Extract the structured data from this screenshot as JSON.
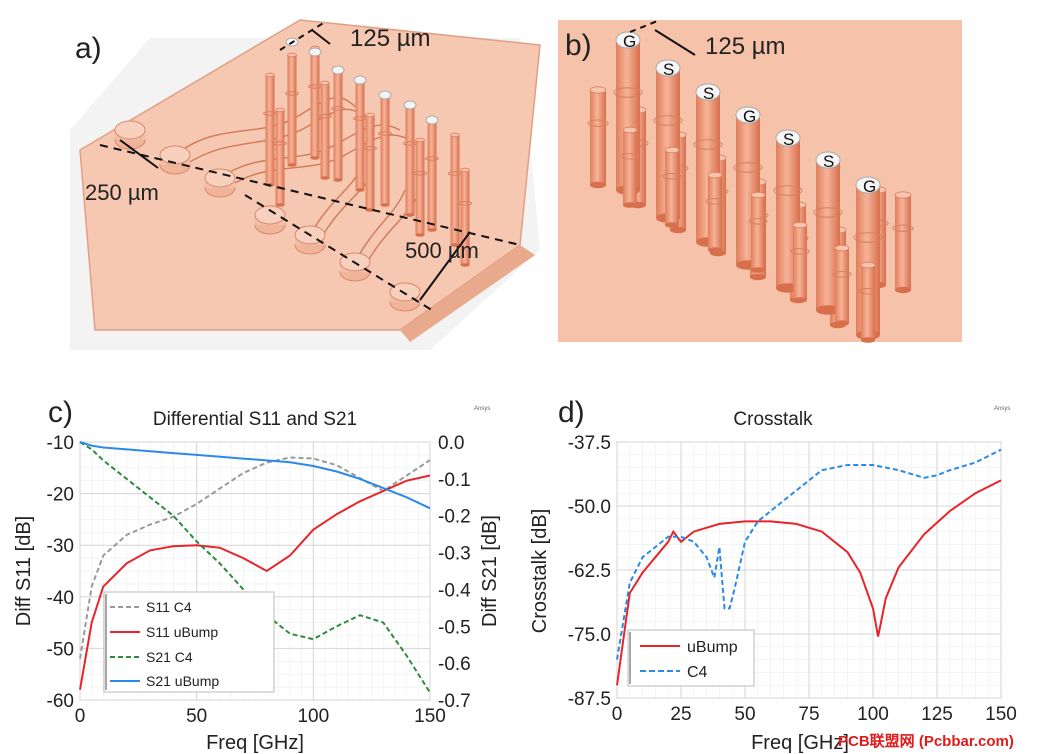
{
  "panels": {
    "a": {
      "label": "a)",
      "dims": [
        "125 µm",
        "250 µm",
        "500 µm"
      ]
    },
    "b": {
      "label": "b)",
      "dims": [
        "125 µm"
      ],
      "pad_labels": [
        "G",
        "S",
        "S",
        "G",
        "S",
        "S",
        "G"
      ]
    }
  },
  "colors": {
    "s11_c4": "#9a9a9a",
    "s11_ubump": "#e8242a",
    "s21_c4": "#2e8b3e",
    "s21_ubump": "#2a8ae8",
    "c4_crosstalk": "#2a8ae8",
    "copper": "#ec9b7c",
    "board": "#f6c7b1"
  },
  "watermark": "PCB联盟网 (Pcbbar.com)",
  "chart_data": [
    {
      "panel_label": "c)",
      "type": "line",
      "title": "Differential S11 and S21",
      "logo": "Ansys",
      "xlabel": "Freq [GHz]",
      "ylabel": "Diff S11 [dB]",
      "y2label": "Diff S21 [dB]",
      "xlim": [
        0,
        150
      ],
      "ylim": [
        -60,
        -10
      ],
      "y2lim": [
        -0.7,
        0.0
      ],
      "xticks": [
        "0",
        "50",
        "100",
        "150"
      ],
      "yticks": [
        "-10",
        "-20",
        "-30",
        "-40",
        "-50",
        "-60"
      ],
      "y2ticks": [
        "0.0",
        "-0.1",
        "-0.2",
        "-0.3",
        "-0.4",
        "-0.5",
        "-0.6",
        "-0.7"
      ],
      "grid": true,
      "legend_position": "bottom-left",
      "x": [
        0,
        5,
        10,
        20,
        30,
        40,
        50,
        60,
        70,
        80,
        90,
        100,
        110,
        120,
        130,
        140,
        150
      ],
      "series": [
        {
          "name": "S11 C4",
          "axis": "left",
          "style": "dashed",
          "values": [
            -52,
            -38,
            -32,
            -28,
            -26,
            -24.5,
            -22,
            -19,
            -16,
            -14,
            -13,
            -13.2,
            -14.5,
            -17,
            -19.5,
            -16.5,
            -13.5
          ]
        },
        {
          "name": "S11 uBump",
          "axis": "left",
          "style": "solid",
          "values": [
            -58,
            -45,
            -38,
            -33.5,
            -31,
            -30.2,
            -30,
            -30.5,
            -32.5,
            -35,
            -32,
            -27,
            -24,
            -21.5,
            -19.5,
            -17.5,
            -16.5
          ]
        },
        {
          "name": "S21 C4",
          "axis": "right",
          "style": "dashed",
          "values": [
            0.0,
            -0.02,
            -0.05,
            -0.1,
            -0.15,
            -0.2,
            -0.27,
            -0.33,
            -0.4,
            -0.47,
            -0.52,
            -0.535,
            -0.5,
            -0.47,
            -0.49,
            -0.58,
            -0.68
          ]
        },
        {
          "name": "S21 uBump",
          "axis": "right",
          "style": "solid",
          "values": [
            0.0,
            -0.01,
            -0.015,
            -0.02,
            -0.025,
            -0.03,
            -0.035,
            -0.04,
            -0.045,
            -0.05,
            -0.055,
            -0.065,
            -0.08,
            -0.1,
            -0.125,
            -0.15,
            -0.18
          ]
        }
      ]
    },
    {
      "panel_label": "d)",
      "type": "line",
      "title": "Crosstalk",
      "logo": "Ansys",
      "xlabel": "Freq [GHz]",
      "ylabel": "Crosstalk [dB]",
      "xlim": [
        0,
        150
      ],
      "ylim": [
        -87.5,
        -37.5
      ],
      "xticks": [
        "0",
        "25",
        "50",
        "75",
        "100",
        "125",
        "150"
      ],
      "yticks": [
        "-37.5",
        "-50.0",
        "-62.5",
        "-75.0",
        "-87.5"
      ],
      "grid": true,
      "legend_position": "bottom-left",
      "series": [
        {
          "name": "uBump",
          "style": "solid",
          "x": [
            0,
            5,
            10,
            15,
            20,
            22,
            25,
            30,
            40,
            50,
            60,
            70,
            80,
            90,
            95,
            100,
            102,
            105,
            110,
            120,
            130,
            140,
            150
          ],
          "values": [
            -85,
            -67,
            -63,
            -60,
            -57,
            -55,
            -57,
            -55,
            -53.5,
            -53,
            -53,
            -53.5,
            -55,
            -59,
            -63,
            -70,
            -75.5,
            -68,
            -62,
            -55.5,
            -51,
            -47.5,
            -45
          ]
        },
        {
          "name": "C4",
          "style": "dashed",
          "x": [
            0,
            5,
            10,
            15,
            20,
            25,
            30,
            35,
            38,
            40,
            42,
            44,
            46,
            50,
            55,
            60,
            70,
            75,
            80,
            90,
            100,
            110,
            120,
            125,
            130,
            140,
            150
          ],
          "values": [
            -80,
            -65,
            -60,
            -58,
            -56,
            -56,
            -57,
            -60,
            -64,
            -58,
            -70,
            -70,
            -66,
            -57,
            -53,
            -51,
            -47,
            -45,
            -43,
            -42,
            -42,
            -43,
            -44.5,
            -44,
            -43,
            -41.5,
            -39
          ]
        }
      ]
    }
  ]
}
